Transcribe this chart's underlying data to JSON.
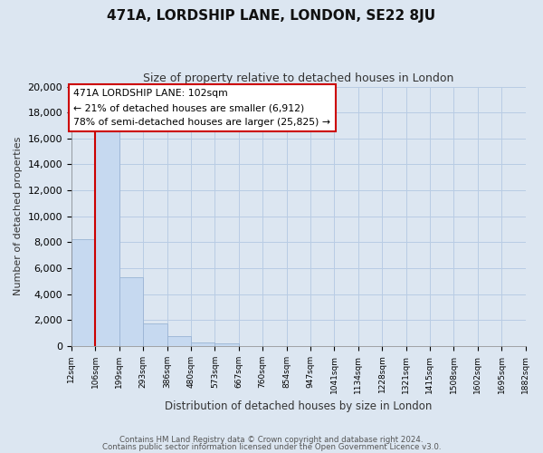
{
  "title": "471A, LORDSHIP LANE, LONDON, SE22 8JU",
  "subtitle": "Size of property relative to detached houses in London",
  "xlabel": "Distribution of detached houses by size in London",
  "ylabel": "Number of detached properties",
  "bar_values": [
    8200,
    16600,
    5300,
    1750,
    750,
    280,
    200,
    0,
    0,
    0,
    0,
    0,
    0,
    0,
    0,
    0,
    0,
    0,
    0
  ],
  "tick_labels": [
    "12sqm",
    "106sqm",
    "199sqm",
    "293sqm",
    "386sqm",
    "480sqm",
    "573sqm",
    "667sqm",
    "760sqm",
    "854sqm",
    "947sqm",
    "1041sqm",
    "1134sqm",
    "1228sqm",
    "1321sqm",
    "1415sqm",
    "1508sqm",
    "1602sqm",
    "1695sqm",
    "1882sqm"
  ],
  "bar_color": "#c6d9f0",
  "bar_edge_color": "#9ab4d4",
  "vline_color": "#cc0000",
  "annotation_text_line1": "471A LORDSHIP LANE: 102sqm",
  "annotation_text_line2": "← 21% of detached houses are smaller (6,912)",
  "annotation_text_line3": "78% of semi-detached houses are larger (25,825) →",
  "ylim": [
    0,
    20000
  ],
  "yticks": [
    0,
    2000,
    4000,
    6000,
    8000,
    10000,
    12000,
    14000,
    16000,
    18000,
    20000
  ],
  "background_color": "#dce6f1",
  "plot_bg_color": "#dce6f1",
  "grid_color": "#b8cce4",
  "footer_line1": "Contains HM Land Registry data © Crown copyright and database right 2024.",
  "footer_line2": "Contains public sector information licensed under the Open Government Licence v3.0."
}
